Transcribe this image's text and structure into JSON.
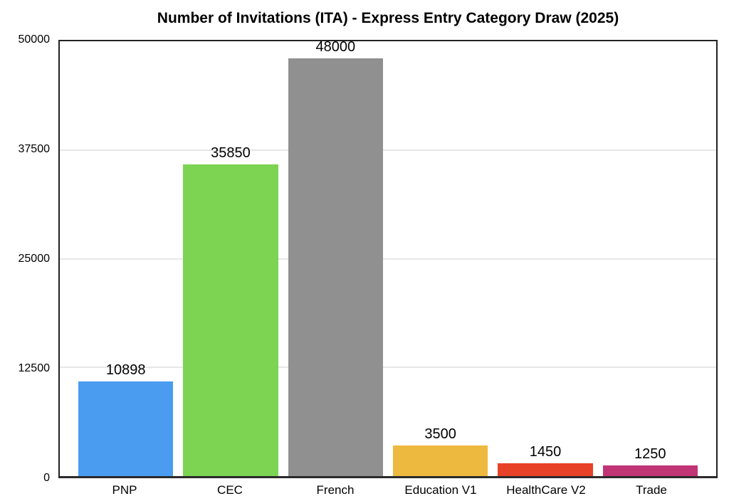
{
  "title": "Number of Invitations (ITA) - Express Entry Category Draw (2025)",
  "chart_data": {
    "type": "bar",
    "title": "Number of Invitations (ITA) - Express Entry Category Draw (2025)",
    "categories": [
      "PNP",
      "CEC",
      "French",
      "Education V1",
      "HealthCare V2",
      "Trade"
    ],
    "values": [
      10898,
      35850,
      48000,
      3500,
      1450,
      1250
    ],
    "value_labels": [
      "10898",
      "35850",
      "48000",
      "3500",
      "1450",
      "1250"
    ],
    "bar_colors": [
      "#4A9CF1",
      "#7CD452",
      "#909090",
      "#EDB93F",
      "#E74228",
      "#C13476"
    ],
    "xlabel": "",
    "ylabel": "",
    "ylim": [
      0,
      50000
    ],
    "yticks": [
      0,
      12500,
      25000,
      37500,
      50000
    ],
    "ytick_labels": [
      "0",
      "12500",
      "25000",
      "37500",
      "50000"
    ],
    "grid": "horizontal gridlines on",
    "legend": "none"
  },
  "colors": {
    "background": "#ffffff",
    "axis_border": "#222222",
    "bottom_axis": "#2a2a2a",
    "gridline": "#e7e7e7",
    "text": "#000000"
  }
}
